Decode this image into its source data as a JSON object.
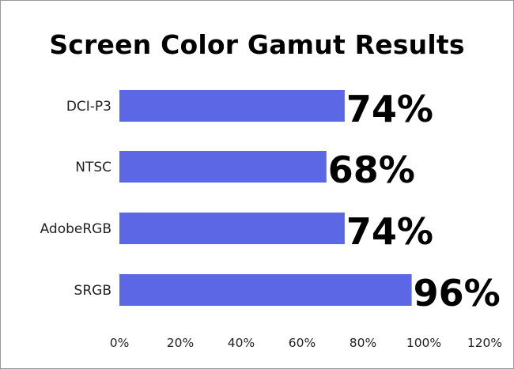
{
  "chart_data": {
    "type": "bar",
    "orientation": "horizontal",
    "title": "Screen Color Gamut Results",
    "categories": [
      "DCI-P3",
      "NTSC",
      "AdobeRGB",
      "SRGB"
    ],
    "values": [
      74,
      68,
      74,
      96
    ],
    "data_labels": [
      "74%",
      "68%",
      "74%",
      "96%"
    ],
    "xlim": [
      0,
      120
    ],
    "x_ticks": [
      0,
      20,
      40,
      60,
      80,
      100,
      120
    ],
    "x_tick_labels": [
      "0%",
      "20%",
      "40%",
      "60%",
      "80%",
      "100%",
      "120%"
    ],
    "grid": false,
    "legend": "none",
    "bar_color": "#5b67e4"
  }
}
